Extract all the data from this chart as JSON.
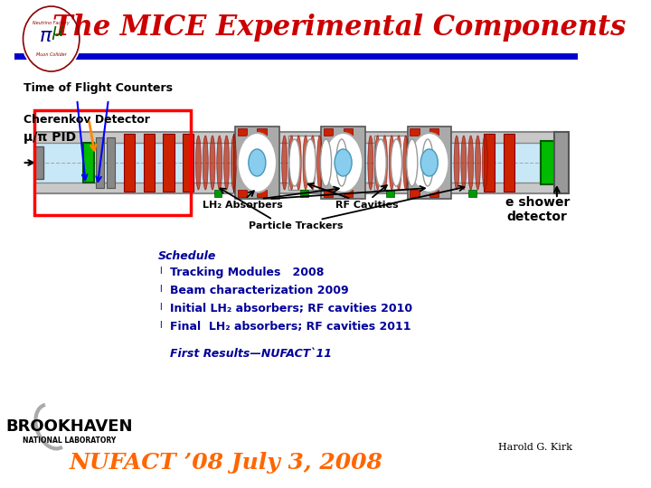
{
  "title": "The MICE Experimental Components",
  "title_color": "#cc0000",
  "title_fontsize": 22,
  "bg_color": "#ffffff",
  "header_line_color": "#0000cc",
  "label_tof": "Time of Flight Counters",
  "label_cherenkov": "Cherenkov Detector",
  "label_pid": "μ/π PID",
  "label_lh2": "LH₂ Absorbers",
  "label_rf": "RF Cavities",
  "label_tracker": "Particle Trackers",
  "label_eshower": "e shower\ndetector",
  "schedule_title": "Schedule",
  "schedule_items": [
    "Tracking Modules   2008",
    "Beam characterization 2009",
    "Initial LH₂ absorbers; RF cavities 2010",
    "Final  LH₂ absorbers; RF cavities 2011"
  ],
  "first_results": "First Results—NUFACT`11",
  "bottom_label": "NUFACT ’08 July 3, 2008",
  "bottom_label_color": "#ff6600",
  "harold": "Harold G. Kirk",
  "schedule_color": "#000099",
  "schedule_items_color": "#000099"
}
